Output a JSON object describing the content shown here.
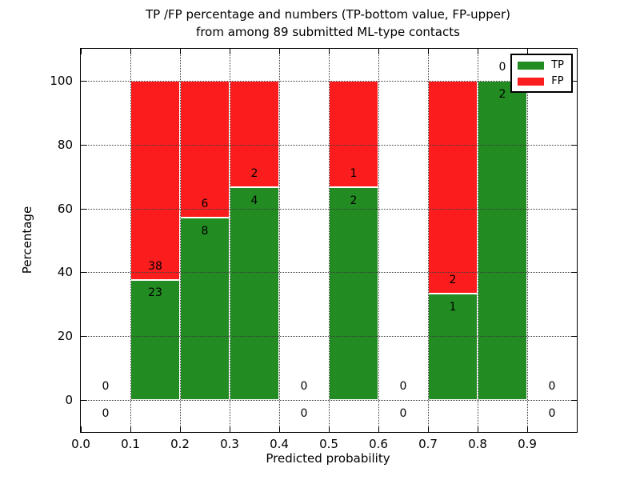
{
  "figure": {
    "title_line1": "TP /FP percentage and numbers (TP-bottom value, FP-upper)",
    "title_line2": "from among 89 submitted ML-type contacts",
    "xlabel": "Predicted probability",
    "ylabel": "Percentage"
  },
  "legend": {
    "items": [
      {
        "label": "TP",
        "color": "#228B22"
      },
      {
        "label": "FP",
        "color": "#FB1D1D"
      }
    ]
  },
  "chart_data": {
    "type": "bar",
    "stacked": true,
    "title": "TP /FP percentage and numbers (TP-bottom value, FP-upper) from among 89 submitted ML-type contacts",
    "xlabel": "Predicted probability",
    "ylabel": "Percentage",
    "xlim": [
      0.0,
      1.0
    ],
    "ylim": [
      -10,
      110
    ],
    "xticks": [
      "0.0",
      "0.1",
      "0.2",
      "0.3",
      "0.4",
      "0.5",
      "0.6",
      "0.7",
      "0.8",
      "0.9"
    ],
    "yticks": [
      0,
      20,
      40,
      60,
      80,
      100
    ],
    "grid": "dotted, drawn over bars",
    "legend_position": "upper right",
    "colors": {
      "tp": "#228B22",
      "fp": "#FB1D1D",
      "bar_edge": "#ffffff"
    },
    "note": "Each bin 0.1 wide; bar heights are TP/(TP+FP) and FP/(TP+FP) percentages stacked to 100%; labels show raw counts (TP below boundary, FP above boundary)",
    "bins": [
      {
        "range": [
          0.0,
          0.1
        ],
        "tp": 0,
        "fp": 0
      },
      {
        "range": [
          0.1,
          0.2
        ],
        "tp": 23,
        "fp": 38
      },
      {
        "range": [
          0.2,
          0.3
        ],
        "tp": 8,
        "fp": 6
      },
      {
        "range": [
          0.3,
          0.4
        ],
        "tp": 4,
        "fp": 2
      },
      {
        "range": [
          0.4,
          0.5
        ],
        "tp": 0,
        "fp": 0
      },
      {
        "range": [
          0.5,
          0.6
        ],
        "tp": 2,
        "fp": 1
      },
      {
        "range": [
          0.6,
          0.7
        ],
        "tp": 0,
        "fp": 0
      },
      {
        "range": [
          0.7,
          0.8
        ],
        "tp": 1,
        "fp": 2
      },
      {
        "range": [
          0.8,
          0.9
        ],
        "tp": 2,
        "fp": 0
      },
      {
        "range": [
          0.9,
          1.0
        ],
        "tp": 0,
        "fp": 0
      }
    ],
    "label_offset_pct": 4.2
  }
}
